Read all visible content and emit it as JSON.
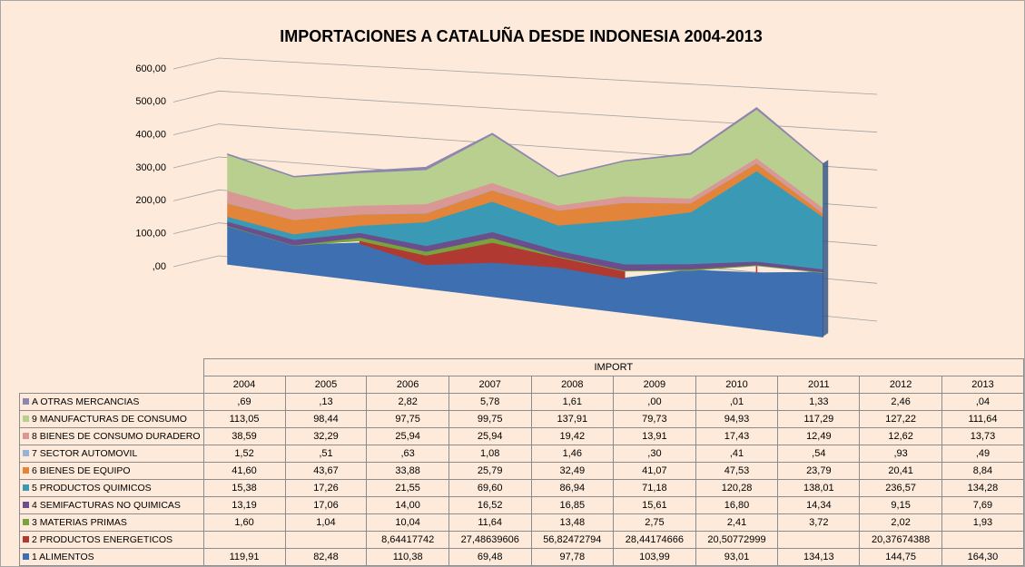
{
  "chart_data": {
    "type": "area3d",
    "title": "IMPORTACIONES A CATALUÑA DESDE INDONESIA 2004-2013",
    "table_header": "IMPORT",
    "categories": [
      "2004",
      "2005",
      "2006",
      "2007",
      "2008",
      "2009",
      "2010",
      "2011",
      "2012",
      "2013"
    ],
    "ylim": [
      0,
      600
    ],
    "yticks": [
      {
        "value": 0,
        "label": ",00"
      },
      {
        "value": 100,
        "label": "100,00"
      },
      {
        "value": 200,
        "label": "200,00"
      },
      {
        "value": 300,
        "label": "300,00"
      },
      {
        "value": 400,
        "label": "400,00"
      },
      {
        "value": 500,
        "label": "500,00"
      },
      {
        "value": 600,
        "label": "600,00"
      }
    ],
    "grid": true,
    "series": [
      {
        "name": "A OTRAS MERCANCIAS",
        "color": "#8e86ae",
        "values": [
          0.69,
          0.13,
          2.82,
          5.78,
          1.61,
          0.0,
          0.01,
          1.33,
          2.46,
          0.04
        ],
        "value_labels": [
          ",69",
          ",13",
          "2,82",
          "5,78",
          "1,61",
          ",00",
          ",01",
          "1,33",
          "2,46",
          ",04"
        ]
      },
      {
        "name": "9 MANUFACTURAS DE CONSUMO",
        "color": "#b9cf8f",
        "values": [
          113.05,
          98.44,
          97.75,
          99.75,
          137.91,
          79.73,
          94.93,
          117.29,
          127.22,
          111.64
        ],
        "value_labels": [
          "113,05",
          "98,44",
          "97,75",
          "99,75",
          "137,91",
          "79,73",
          "94,93",
          "117,29",
          "127,22",
          "111,64"
        ]
      },
      {
        "name": "8 BIENES DE CONSUMO DURADERO",
        "color": "#d99795",
        "values": [
          38.59,
          32.29,
          25.94,
          25.94,
          19.42,
          13.91,
          17.43,
          12.49,
          12.62,
          13.73
        ],
        "value_labels": [
          "38,59",
          "32,29",
          "25,94",
          "25,94",
          "19,42",
          "13,91",
          "17,43",
          "12,49",
          "12,62",
          "13,73"
        ]
      },
      {
        "name": "7 SECTOR AUTOMOVIL",
        "color": "#95b3d7",
        "values": [
          1.52,
          0.51,
          0.63,
          1.08,
          1.46,
          0.3,
          0.41,
          0.54,
          0.93,
          0.49
        ],
        "value_labels": [
          "1,52",
          ",51",
          ",63",
          "1,08",
          "1,46",
          ",30",
          ",41",
          ",54",
          ",93",
          ",49"
        ]
      },
      {
        "name": "6 BIENES DE EQUIPO",
        "color": "#e2843a",
        "values": [
          41.6,
          43.67,
          33.88,
          25.79,
          32.49,
          41.07,
          47.53,
          23.79,
          20.41,
          8.84
        ],
        "value_labels": [
          "41,60",
          "43,67",
          "33,88",
          "25,79",
          "32,49",
          "41,07",
          "47,53",
          "23,79",
          "20,41",
          "8,84"
        ]
      },
      {
        "name": "5 PRODUCTOS QUIMICOS",
        "color": "#3a9ab5",
        "values": [
          15.38,
          17.26,
          21.55,
          69.6,
          86.94,
          71.18,
          120.28,
          138.01,
          236.57,
          134.28
        ],
        "value_labels": [
          "15,38",
          "17,26",
          "21,55",
          "69,60",
          "86,94",
          "71,18",
          "120,28",
          "138,01",
          "236,57",
          "134,28"
        ]
      },
      {
        "name": "4 SEMIFACTURAS NO QUIMICAS",
        "color": "#6b4e8c",
        "values": [
          13.19,
          17.06,
          14.0,
          16.52,
          16.85,
          15.61,
          16.8,
          14.34,
          9.15,
          7.69
        ],
        "value_labels": [
          "13,19",
          "17,06",
          "14,00",
          "16,52",
          "16,85",
          "15,61",
          "16,80",
          "14,34",
          "9,15",
          "7,69"
        ]
      },
      {
        "name": "3 MATERIAS PRIMAS",
        "color": "#79a33e",
        "values": [
          1.6,
          1.04,
          10.04,
          11.64,
          13.48,
          2.75,
          2.41,
          3.72,
          2.02,
          1.93
        ],
        "value_labels": [
          "1,60",
          "1,04",
          "10,04",
          "11,64",
          "13,48",
          "2,75",
          "2,41",
          "3,72",
          "2,02",
          "1,93"
        ]
      },
      {
        "name": "2 PRODUCTOS ENERGETICOS",
        "color": "#b03a32",
        "values": [
          null,
          null,
          8.64417742,
          27.48639606,
          56.82472794,
          28.44174666,
          20.50772999,
          null,
          20.37674388,
          null
        ],
        "value_labels": [
          null,
          null,
          "8,64417742",
          "27,48639606",
          "56,82472794",
          "28,44174666",
          "20,50772999",
          null,
          "20,37674388",
          null
        ]
      },
      {
        "name": "1 ALIMENTOS",
        "color": "#3e6fb0",
        "values": [
          119.91,
          82.48,
          110.38,
          69.48,
          97.78,
          103.99,
          93.01,
          134.13,
          144.75,
          164.3
        ],
        "value_labels": [
          "119,91",
          "82,48",
          "110,38",
          "69,48",
          "97,78",
          "103,99",
          "93,01",
          "134,13",
          "144,75",
          "164,30"
        ]
      }
    ]
  }
}
